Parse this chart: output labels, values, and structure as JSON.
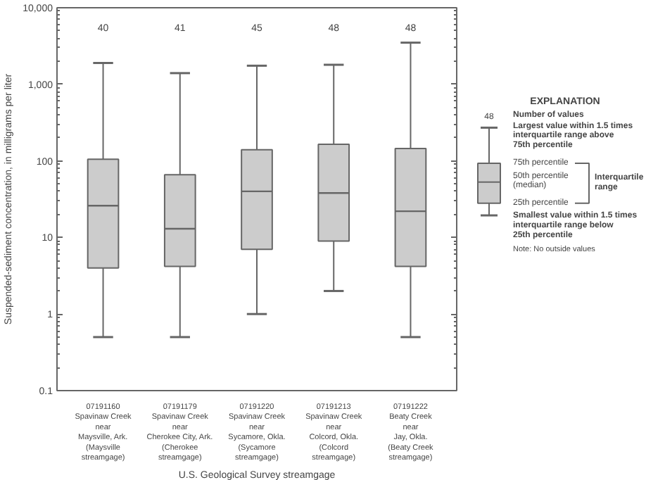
{
  "chart_data": {
    "type": "box",
    "categories": [
      "07191160\nSpavinaw Creek\nnear\nMaysville, Ark.\n(Maysville\nstreamgage)",
      "07191179\nSpavinaw Creek\nnear\nCherokee City, Ark.\n(Cherokee\nstreamgage)",
      "07191220\nSpavinaw Creek\nnear\nSycamore, Okla.\n(Sycamore\nstreamgage)",
      "07191213\nSpavinaw Creek\nnear\nColcord, Okla.\n(Colcord\nstreamgage)",
      "07191222\nBeaty Creek\nnear\nJay, Okla.\n(Beaty Creek\nstreamgage)"
    ],
    "boxes": [
      {
        "low": 0.5,
        "q1": 4,
        "median": 26,
        "q3": 105,
        "high": 1900
      },
      {
        "low": 0.5,
        "q1": 4.2,
        "median": 13,
        "q3": 66,
        "high": 1400
      },
      {
        "low": 1,
        "q1": 7,
        "median": 40,
        "q3": 140,
        "high": 1750
      },
      {
        "low": 2,
        "q1": 9,
        "median": 38,
        "q3": 165,
        "high": 1800
      },
      {
        "low": 0.5,
        "q1": 4.2,
        "median": 22,
        "q3": 145,
        "high": 3500
      }
    ],
    "color": "#cccccc",
    "log": true,
    "ylim": [
      0.1,
      10000
    ],
    "yticks": [
      0.1,
      1,
      10,
      100,
      {
        "value": 1000,
        "label": "1,000"
      },
      {
        "value": 10000,
        "label": "10,000"
      }
    ],
    "xlabel": "U.S. Geological Survey streamgage",
    "ylabel": "Suspended-sediment concentration, in milligrams per liter",
    "grid": false,
    "annotations": [
      "40",
      "41",
      "45",
      "48",
      "48",
      "EXPLANATION",
      "48",
      "Number of values",
      "Largest value within 1.5 times\ninterquartile range above\n75th percentile",
      "75th percentile",
      "50th percentile\n(median)",
      "25th percentile",
      "Interquartile\nrange",
      "Smallest value within 1.5 times\ninterquartile range below\n25th percentile",
      "Note: No outside values"
    ]
  }
}
